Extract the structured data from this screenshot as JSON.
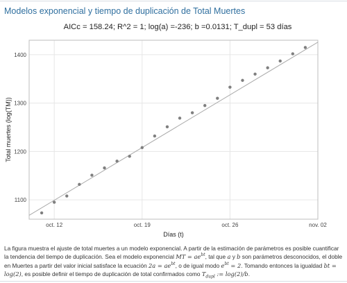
{
  "section": {
    "title": "Modelos exponencial y tiempo de duplicación de Total Muertes"
  },
  "chart_data": {
    "type": "scatter",
    "title": "AICc = 158.24; R^2 = 1; log(a) =-236; b =0.0131; T_dupl = 53 días",
    "xlabel": "Días (t)",
    "ylabel": "Total muertes (log(TM))",
    "x_ticks": [
      "oct. 12",
      "oct. 19",
      "oct. 26",
      "nov. 02"
    ],
    "y_ticks": [
      1100,
      1200,
      1300,
      1400
    ],
    "xlim": [
      "2020-10-10",
      "2020-11-02"
    ],
    "ylim": [
      1060,
      1430
    ],
    "grid": true,
    "series": [
      {
        "x": [
          "2020-10-11",
          "2020-10-12",
          "2020-10-13",
          "2020-10-14",
          "2020-10-15",
          "2020-10-16",
          "2020-10-17",
          "2020-10-18",
          "2020-10-19",
          "2020-10-20",
          "2020-10-21",
          "2020-10-22",
          "2020-10-23",
          "2020-10-24",
          "2020-10-25",
          "2020-10-26",
          "2020-10-27",
          "2020-10-28",
          "2020-10-29",
          "2020-10-30",
          "2020-10-31",
          "2020-11-01"
        ],
        "y": [
          1073,
          1095,
          1108,
          1132,
          1151,
          1166,
          1180,
          1190,
          1208,
          1232,
          1251,
          1269,
          1280,
          1295,
          1310,
          1333,
          1347,
          1360,
          1373,
          1387,
          1402,
          1415
        ],
        "color": "#7f7f7f"
      }
    ],
    "fit": {
      "x": [
        "2020-10-10",
        "2020-11-02"
      ],
      "y": [
        1068,
        1426
      ],
      "color": "#aaaaaa"
    }
  },
  "caption": {
    "s1": "La figura muestra el ajuste de total muertes a un modelo exponencial. A partir de la estimación de parámetros es posible cuantificar la tendencia del tiempo de duplicación. Sea el modelo exponencial ",
    "m1": "MT = ae",
    "m1_sup": "bt",
    "s2": ", tal que ",
    "m_a": "a",
    "s3": " y ",
    "m_b": "b",
    "s4": " son parámetros desconocidos, el doble en Muertes a partir del valor inicial satisface la ecuación ",
    "m2": "2a = ae",
    "m2_sup": "bt",
    "s5": ", o de igual modo ",
    "m3": "e",
    "m3_sup": "bt",
    "m3_tail": " = 2",
    "s6": ". Tomando entonces la igualdad ",
    "m4": "bt = log(2)",
    "s7": ", es posible definir el tiempo de duplicación de total confirmados como ",
    "m5": "T",
    "m5_sub": "dupl",
    "m5_tail": " := log(2)/b",
    "s8": "."
  }
}
